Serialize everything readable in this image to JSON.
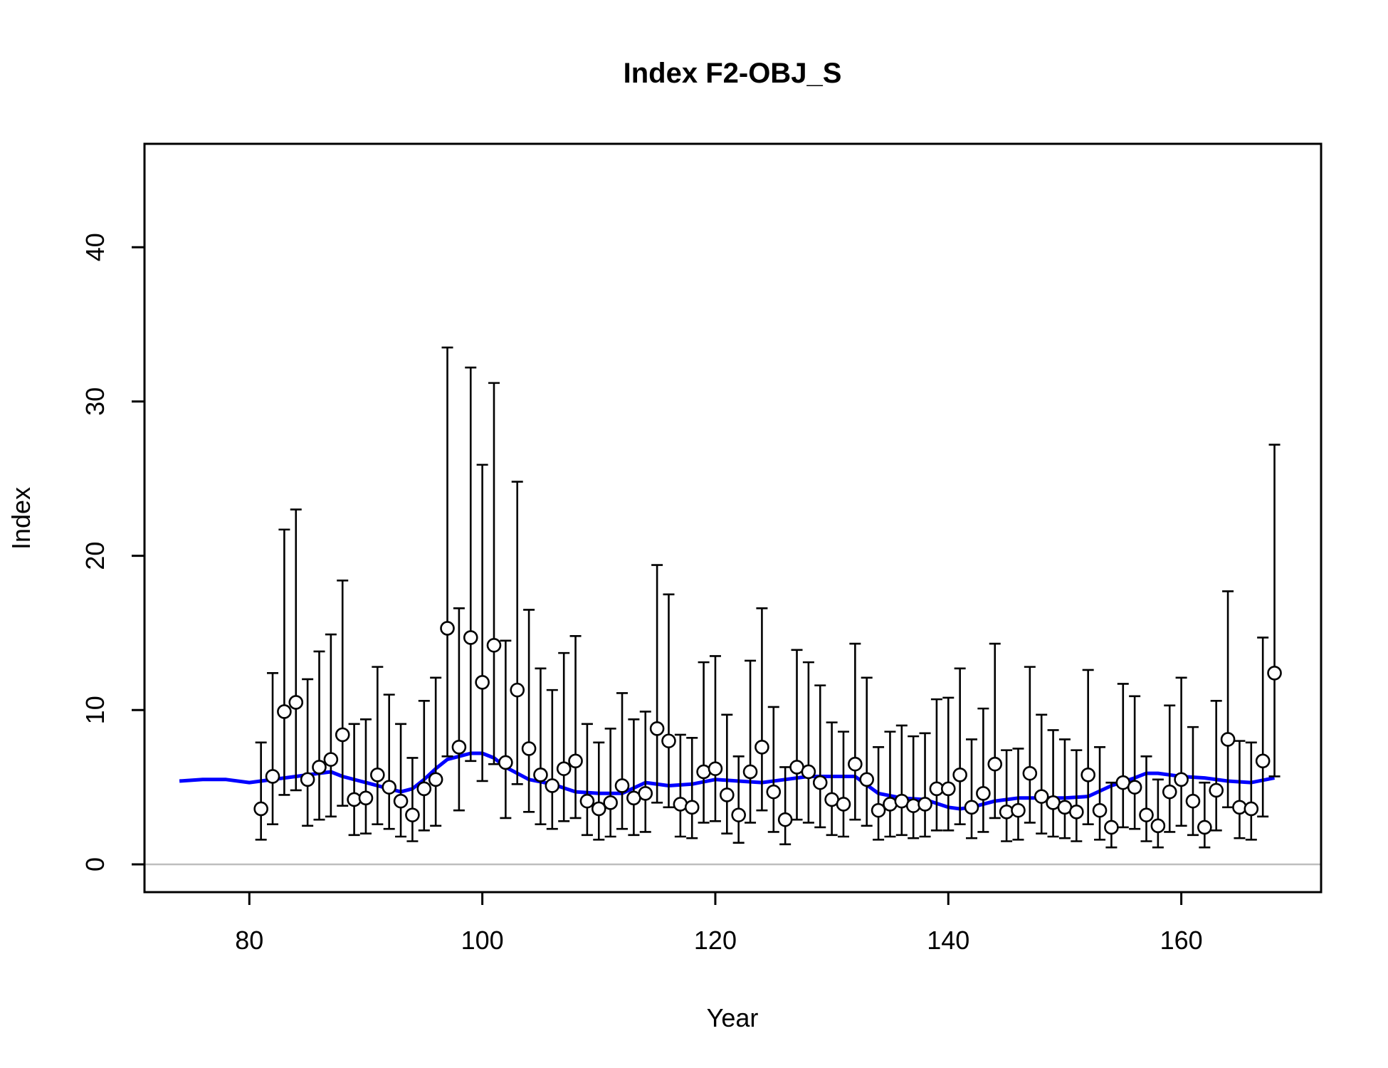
{
  "chart_data": {
    "type": "scatter",
    "title": "Index F2-OBJ_S",
    "xlabel": "Year",
    "ylabel": "Index",
    "xlim": [
      71,
      172
    ],
    "ylim": [
      -1.8,
      46.7
    ],
    "x_ticks": [
      80,
      100,
      120,
      140,
      160
    ],
    "y_ticks": [
      0,
      10,
      20,
      30,
      40
    ],
    "grid": false,
    "legend": "none",
    "colors": {
      "points": "#000000",
      "fit": "#0000ff",
      "zero_line": "#bebebe"
    },
    "series": [
      {
        "x": [
          81,
          82,
          83,
          84,
          85,
          86,
          87,
          88,
          89,
          90,
          91,
          92,
          93,
          94,
          95,
          96,
          97,
          98,
          99,
          100,
          101,
          102,
          103,
          104,
          105,
          106,
          107,
          108,
          109,
          110,
          111,
          112,
          113,
          114,
          115,
          116,
          117,
          118,
          119,
          120,
          121,
          122,
          123,
          124,
          125,
          126,
          127,
          128,
          129,
          130,
          131,
          132,
          133,
          134,
          135,
          136,
          137,
          138,
          139,
          140,
          141,
          142,
          143,
          144,
          145,
          146,
          147,
          148,
          149,
          150,
          151,
          152,
          153,
          154,
          155,
          156,
          157,
          158,
          159,
          160,
          161,
          162,
          163,
          164,
          165,
          166,
          167,
          168
        ],
        "y": [
          3.6,
          5.7,
          9.9,
          10.5,
          5.5,
          6.3,
          6.8,
          8.4,
          4.2,
          4.3,
          5.8,
          5.0,
          4.1,
          3.2,
          4.9,
          5.5,
          15.3,
          7.6,
          14.7,
          11.8,
          14.2,
          6.6,
          11.3,
          7.5,
          5.8,
          5.1,
          6.2,
          6.7,
          4.1,
          3.6,
          4.0,
          5.1,
          4.3,
          4.6,
          8.8,
          8.0,
          3.9,
          3.7,
          6.0,
          6.2,
          4.5,
          3.2,
          6.0,
          7.6,
          4.7,
          2.9,
          6.3,
          6.0,
          5.3,
          4.2,
          3.9,
          6.5,
          5.5,
          3.5,
          3.9,
          4.1,
          3.8,
          3.9,
          4.9,
          4.9,
          5.8,
          3.7,
          4.6,
          6.5,
          3.4,
          3.5,
          5.9,
          4.4,
          4.0,
          3.7,
          3.4,
          5.8,
          3.5,
          2.4,
          5.3,
          5.0,
          3.2,
          2.5,
          4.7,
          5.5,
          4.1,
          2.4,
          4.8,
          8.1,
          3.7,
          3.6,
          6.7,
          12.4
        ],
        "y_upper": [
          7.9,
          12.4,
          21.7,
          23.0,
          12.0,
          13.8,
          14.9,
          18.4,
          9.1,
          9.4,
          12.8,
          11.0,
          9.1,
          6.9,
          10.6,
          12.1,
          33.5,
          16.6,
          32.2,
          25.9,
          31.2,
          14.5,
          24.8,
          16.5,
          12.7,
          11.3,
          13.7,
          14.8,
          9.1,
          7.9,
          8.8,
          11.1,
          9.4,
          9.9,
          19.4,
          17.5,
          8.4,
          8.2,
          13.1,
          13.5,
          9.7,
          7.0,
          13.2,
          16.6,
          10.2,
          6.3,
          13.9,
          13.1,
          11.6,
          9.2,
          8.6,
          14.3,
          12.1,
          7.6,
          8.6,
          9.0,
          8.3,
          8.5,
          10.7,
          10.8,
          12.7,
          8.1,
          10.1,
          14.3,
          7.4,
          7.5,
          12.8,
          9.7,
          8.7,
          8.1,
          7.4,
          12.6,
          7.6,
          5.3,
          11.7,
          10.9,
          7.0,
          5.5,
          10.3,
          12.1,
          8.9,
          5.3,
          10.6,
          17.7,
          8.0,
          7.9,
          14.7,
          27.2
        ],
        "y_lower": [
          1.6,
          2.6,
          4.5,
          4.8,
          2.5,
          2.9,
          3.1,
          3.8,
          1.9,
          2.0,
          2.6,
          2.3,
          1.8,
          1.5,
          2.2,
          2.5,
          7.0,
          3.5,
          6.7,
          5.4,
          6.5,
          3.0,
          5.2,
          3.4,
          2.6,
          2.3,
          2.8,
          3.0,
          1.9,
          1.6,
          1.8,
          2.3,
          1.9,
          2.1,
          4.0,
          3.7,
          1.8,
          1.7,
          2.7,
          2.8,
          2.0,
          1.4,
          2.7,
          3.5,
          2.1,
          1.3,
          2.9,
          2.7,
          2.4,
          1.9,
          1.8,
          2.9,
          2.5,
          1.6,
          1.8,
          1.9,
          1.7,
          1.8,
          2.2,
          2.2,
          2.6,
          1.7,
          2.1,
          3.0,
          1.5,
          1.6,
          2.7,
          2.0,
          1.8,
          1.7,
          1.5,
          2.6,
          1.6,
          1.1,
          2.4,
          2.3,
          1.5,
          1.1,
          2.1,
          2.5,
          1.9,
          1.1,
          2.2,
          3.7,
          1.7,
          1.6,
          3.1,
          5.7
        ]
      }
    ],
    "fit_line": {
      "x": [
        74,
        76,
        78,
        80,
        82,
        84,
        86,
        87,
        88,
        90,
        92,
        93,
        94,
        95,
        96,
        97,
        98,
        99,
        100,
        101,
        102,
        104,
        106,
        108,
        110,
        112,
        114,
        116,
        118,
        120,
        122,
        124,
        126,
        128,
        130,
        132,
        134,
        136,
        138,
        140,
        141,
        142,
        144,
        146,
        148,
        150,
        152,
        154,
        156,
        157,
        158,
        160,
        162,
        164,
        166,
        168
      ],
      "y": [
        5.4,
        5.5,
        5.5,
        5.3,
        5.5,
        5.7,
        5.9,
        6.0,
        5.7,
        5.3,
        4.9,
        4.7,
        4.9,
        5.5,
        6.2,
        6.8,
        7.0,
        7.2,
        7.2,
        6.9,
        6.3,
        5.5,
        5.2,
        4.7,
        4.6,
        4.6,
        5.3,
        5.1,
        5.2,
        5.5,
        5.4,
        5.3,
        5.5,
        5.7,
        5.7,
        5.7,
        4.6,
        4.3,
        4.2,
        3.7,
        3.6,
        3.7,
        4.1,
        4.3,
        4.3,
        4.3,
        4.4,
        5.1,
        5.6,
        5.9,
        5.9,
        5.7,
        5.6,
        5.4,
        5.3,
        5.6
      ]
    }
  }
}
